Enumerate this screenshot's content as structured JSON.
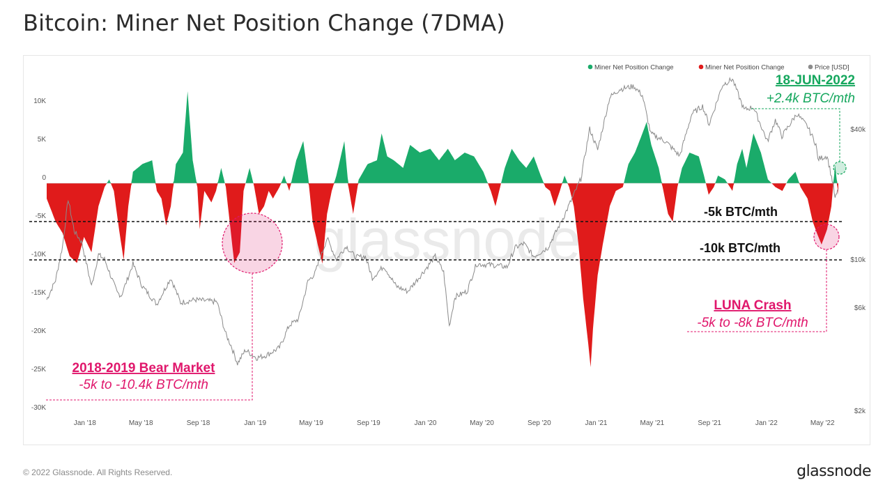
{
  "title": "Bitcoin: Miner Net Position Change (7DMA)",
  "footer": {
    "copyright": "© 2022 Glassnode. All Rights Reserved.",
    "logo": "glassnode"
  },
  "watermark": "glassnode",
  "colors": {
    "positive": "#1aab6a",
    "negative": "#e01b1b",
    "price": "#8c8c8c",
    "annotation_pink": "#e0176c",
    "annotation_green": "#16a75e"
  },
  "legend": [
    {
      "label": "Miner Net Position Change",
      "color": "#1aab6a"
    },
    {
      "label": "Miner Net Position Change",
      "color": "#e01b1b"
    },
    {
      "label": "Price [USD]",
      "color": "#8c8c8c"
    }
  ],
  "chart_data": {
    "type": "area",
    "x_ticks": [
      "Jan '18",
      "May '18",
      "Sep '18",
      "Jan '19",
      "May '19",
      "Sep '19",
      "Jan '20",
      "May '20",
      "Sep '20",
      "Jan '21",
      "May '21",
      "Sep '21",
      "Jan '22",
      "May '22"
    ],
    "y_ticks": [
      "10K",
      "5K",
      "0",
      "-5K",
      "-10K",
      "-15K",
      "-20K",
      "-25K",
      "-30K"
    ],
    "y_right_ticks": [
      "$40k",
      "$10k",
      "$6k",
      "$2k"
    ],
    "y_right_scale": "log",
    "ylim": [
      -30000,
      13000
    ],
    "x_range": [
      "2017-11-01",
      "2022-06-25"
    ],
    "series": [
      {
        "name": "Miner Net Position Change",
        "unit": "BTC/month",
        "points": [
          [
            "2017-11-01",
            -2000
          ],
          [
            "2017-11-20",
            -5000
          ],
          [
            "2017-12-05",
            -6500
          ],
          [
            "2017-12-20",
            -9500
          ],
          [
            "2018-01-05",
            -10400
          ],
          [
            "2018-01-20",
            -7000
          ],
          [
            "2018-02-05",
            -9000
          ],
          [
            "2018-02-20",
            -3000
          ],
          [
            "2018-03-05",
            -500
          ],
          [
            "2018-03-15",
            500
          ],
          [
            "2018-03-25",
            -1000
          ],
          [
            "2018-04-05",
            -6000
          ],
          [
            "2018-04-15",
            -10000
          ],
          [
            "2018-04-25",
            -3000
          ],
          [
            "2018-05-05",
            1500
          ],
          [
            "2018-05-25",
            2500
          ],
          [
            "2018-06-15",
            3000
          ],
          [
            "2018-06-25",
            -1000
          ],
          [
            "2018-07-05",
            -2000
          ],
          [
            "2018-07-15",
            -5500
          ],
          [
            "2018-07-25",
            -3000
          ],
          [
            "2018-08-05",
            2500
          ],
          [
            "2018-08-20",
            4000
          ],
          [
            "2018-08-30",
            12000
          ],
          [
            "2018-09-10",
            3000
          ],
          [
            "2018-09-20",
            -500
          ],
          [
            "2018-09-25",
            -6000
          ],
          [
            "2018-10-05",
            -1000
          ],
          [
            "2018-10-20",
            -2500
          ],
          [
            "2018-10-30",
            -1000
          ],
          [
            "2018-11-10",
            2000
          ],
          [
            "2018-11-20",
            -500
          ],
          [
            "2018-11-30",
            -6000
          ],
          [
            "2018-12-08",
            -10400
          ],
          [
            "2018-12-20",
            -9000
          ],
          [
            "2018-12-28",
            -1000
          ],
          [
            "2019-01-10",
            2000
          ],
          [
            "2019-01-20",
            -500
          ],
          [
            "2019-01-30",
            -4000
          ],
          [
            "2019-02-10",
            -3000
          ],
          [
            "2019-02-20",
            -1000
          ],
          [
            "2019-03-01",
            -2000
          ],
          [
            "2019-03-15",
            -500
          ],
          [
            "2019-03-25",
            1000
          ],
          [
            "2019-04-05",
            -1000
          ],
          [
            "2019-04-20",
            3000
          ],
          [
            "2019-05-05",
            5500
          ],
          [
            "2019-05-15",
            1000
          ],
          [
            "2019-05-25",
            -5000
          ],
          [
            "2019-06-05",
            -8000
          ],
          [
            "2019-06-15",
            -10500
          ],
          [
            "2019-06-25",
            -4000
          ],
          [
            "2019-07-05",
            -1000
          ],
          [
            "2019-07-15",
            1000
          ],
          [
            "2019-08-01",
            5500
          ],
          [
            "2019-08-10",
            -500
          ],
          [
            "2019-08-20",
            -4000
          ],
          [
            "2019-09-01",
            500
          ],
          [
            "2019-09-20",
            2500
          ],
          [
            "2019-10-10",
            3000
          ],
          [
            "2019-10-20",
            6500
          ],
          [
            "2019-11-01",
            3500
          ],
          [
            "2019-11-15",
            3000
          ],
          [
            "2019-12-05",
            2000
          ],
          [
            "2019-12-20",
            5000
          ],
          [
            "2020-01-10",
            4000
          ],
          [
            "2020-02-01",
            4500
          ],
          [
            "2020-02-20",
            3000
          ],
          [
            "2020-03-10",
            4500
          ],
          [
            "2020-03-25",
            3000
          ],
          [
            "2020-04-15",
            4000
          ],
          [
            "2020-05-05",
            3500
          ],
          [
            "2020-05-25",
            1500
          ],
          [
            "2020-06-10",
            -1000
          ],
          [
            "2020-06-20",
            -3000
          ],
          [
            "2020-06-30",
            -500
          ],
          [
            "2020-07-10",
            2000
          ],
          [
            "2020-07-25",
            4500
          ],
          [
            "2020-08-10",
            3000
          ],
          [
            "2020-08-25",
            2000
          ],
          [
            "2020-09-10",
            3500
          ],
          [
            "2020-09-25",
            1000
          ],
          [
            "2020-10-05",
            -500
          ],
          [
            "2020-10-15",
            -1000
          ],
          [
            "2020-10-25",
            -3000
          ],
          [
            "2020-11-05",
            -1000
          ],
          [
            "2020-11-15",
            1000
          ],
          [
            "2020-11-25",
            -500
          ],
          [
            "2020-12-05",
            -3000
          ],
          [
            "2020-12-15",
            -8000
          ],
          [
            "2020-12-25",
            -15000
          ],
          [
            "2021-01-05",
            -21000
          ],
          [
            "2021-01-10",
            -24000
          ],
          [
            "2021-01-15",
            -19000
          ],
          [
            "2021-01-25",
            -12000
          ],
          [
            "2021-02-05",
            -8000
          ],
          [
            "2021-02-20",
            -3000
          ],
          [
            "2021-03-05",
            -1000
          ],
          [
            "2021-03-20",
            -500
          ],
          [
            "2021-04-01",
            2500
          ],
          [
            "2021-04-15",
            4000
          ],
          [
            "2021-05-01",
            6500
          ],
          [
            "2021-05-10",
            8000
          ],
          [
            "2021-05-20",
            5000
          ],
          [
            "2021-06-05",
            2000
          ],
          [
            "2021-06-15",
            -1000
          ],
          [
            "2021-06-25",
            -4000
          ],
          [
            "2021-07-05",
            -5000
          ],
          [
            "2021-07-15",
            -500
          ],
          [
            "2021-07-25",
            2000
          ],
          [
            "2021-08-10",
            4000
          ],
          [
            "2021-08-30",
            3500
          ],
          [
            "2021-09-10",
            1000
          ],
          [
            "2021-09-20",
            -1500
          ],
          [
            "2021-10-01",
            -500
          ],
          [
            "2021-10-10",
            1000
          ],
          [
            "2021-10-25",
            500
          ],
          [
            "2021-11-10",
            -1000
          ],
          [
            "2021-11-20",
            2500
          ],
          [
            "2021-12-01",
            4500
          ],
          [
            "2021-12-10",
            2000
          ],
          [
            "2021-12-25",
            6500
          ],
          [
            "2022-01-10",
            4000
          ],
          [
            "2022-01-25",
            500
          ],
          [
            "2022-02-10",
            -500
          ],
          [
            "2022-02-25",
            -1000
          ],
          [
            "2022-03-10",
            500
          ],
          [
            "2022-03-25",
            1500
          ],
          [
            "2022-04-05",
            -500
          ],
          [
            "2022-04-20",
            -2000
          ],
          [
            "2022-05-01",
            -5000
          ],
          [
            "2022-05-10",
            -6500
          ],
          [
            "2022-05-20",
            -8000
          ],
          [
            "2022-06-01",
            -6000
          ],
          [
            "2022-06-10",
            -3000
          ],
          [
            "2022-06-18",
            2400
          ],
          [
            "2022-06-25",
            -1500
          ]
        ]
      },
      {
        "name": "Price [USD]",
        "unit": "USD",
        "points": [
          [
            "2017-11-01",
            6500
          ],
          [
            "2017-11-20",
            8000
          ],
          [
            "2017-12-05",
            11500
          ],
          [
            "2017-12-17",
            19000
          ],
          [
            "2017-12-30",
            13500
          ],
          [
            "2018-01-15",
            12000
          ],
          [
            "2018-02-05",
            7500
          ],
          [
            "2018-02-20",
            10500
          ],
          [
            "2018-03-05",
            10000
          ],
          [
            "2018-04-01",
            7000
          ],
          [
            "2018-04-10",
            6800
          ],
          [
            "2018-05-05",
            9500
          ],
          [
            "2018-05-25",
            7500
          ],
          [
            "2018-06-25",
            6200
          ],
          [
            "2018-07-25",
            8200
          ],
          [
            "2018-08-15",
            6300
          ],
          [
            "2018-09-15",
            6500
          ],
          [
            "2018-10-15",
            6400
          ],
          [
            "2018-11-01",
            6350
          ],
          [
            "2018-11-20",
            4500
          ],
          [
            "2018-12-01",
            4000
          ],
          [
            "2018-12-15",
            3300
          ],
          [
            "2019-01-01",
            3800
          ],
          [
            "2019-01-25",
            3500
          ],
          [
            "2019-02-15",
            3600
          ],
          [
            "2019-03-15",
            3900
          ],
          [
            "2019-04-05",
            4950
          ],
          [
            "2019-04-25",
            5300
          ],
          [
            "2019-05-15",
            7900
          ],
          [
            "2019-05-30",
            8600
          ],
          [
            "2019-06-25",
            12500
          ],
          [
            "2019-07-15",
            10000
          ],
          [
            "2019-08-05",
            11500
          ],
          [
            "2019-08-25",
            10200
          ],
          [
            "2019-09-15",
            10300
          ],
          [
            "2019-09-30",
            8200
          ],
          [
            "2019-10-25",
            9300
          ],
          [
            "2019-11-20",
            7500
          ],
          [
            "2019-12-15",
            7100
          ],
          [
            "2020-01-15",
            8600
          ],
          [
            "2020-02-12",
            10300
          ],
          [
            "2020-03-01",
            8700
          ],
          [
            "2020-03-13",
            4900
          ],
          [
            "2020-03-25",
            6700
          ],
          [
            "2020-04-20",
            7100
          ],
          [
            "2020-05-10",
            9500
          ],
          [
            "2020-06-15",
            9400
          ],
          [
            "2020-07-15",
            9200
          ],
          [
            "2020-08-01",
            11300
          ],
          [
            "2020-08-20",
            11800
          ],
          [
            "2020-09-10",
            10300
          ],
          [
            "2020-10-10",
            11300
          ],
          [
            "2020-10-25",
            13000
          ],
          [
            "2020-11-15",
            16000
          ],
          [
            "2020-12-01",
            19000
          ],
          [
            "2020-12-20",
            23500
          ],
          [
            "2021-01-08",
            40000
          ],
          [
            "2021-01-25",
            32000
          ],
          [
            "2021-02-20",
            56000
          ],
          [
            "2021-03-13",
            61000
          ],
          [
            "2021-04-13",
            63000
          ],
          [
            "2021-05-01",
            57000
          ],
          [
            "2021-05-19",
            38000
          ],
          [
            "2021-06-20",
            35000
          ],
          [
            "2021-07-20",
            30000
          ],
          [
            "2021-08-15",
            47000
          ],
          [
            "2021-09-07",
            51000
          ],
          [
            "2021-09-21",
            42000
          ],
          [
            "2021-10-20",
            64000
          ],
          [
            "2021-11-10",
            68000
          ],
          [
            "2021-12-05",
            49000
          ],
          [
            "2021-12-25",
            50500
          ],
          [
            "2022-01-24",
            35000
          ],
          [
            "2022-02-10",
            44000
          ],
          [
            "2022-02-24",
            37000
          ],
          [
            "2022-03-28",
            47000
          ],
          [
            "2022-04-20",
            41000
          ],
          [
            "2022-05-08",
            34000
          ],
          [
            "2022-05-12",
            29000
          ],
          [
            "2022-06-01",
            30000
          ],
          [
            "2022-06-14",
            22000
          ],
          [
            "2022-06-18",
            19000
          ],
          [
            "2022-06-25",
            21000
          ]
        ]
      }
    ],
    "reference_lines": [
      {
        "y": -5000,
        "label": "-5k BTC/mth"
      },
      {
        "y": -10000,
        "label": "-10k BTC/mth"
      }
    ],
    "annotations": [
      {
        "title": "2018-2019 Bear Market",
        "subtitle": "-5k to -10.4k BTC/mth"
      },
      {
        "title": "LUNA Crash",
        "subtitle": "-5k to -8k BTC/mth"
      },
      {
        "title": "18-JUN-2022",
        "subtitle": "+2.4k BTC/mth"
      }
    ]
  }
}
